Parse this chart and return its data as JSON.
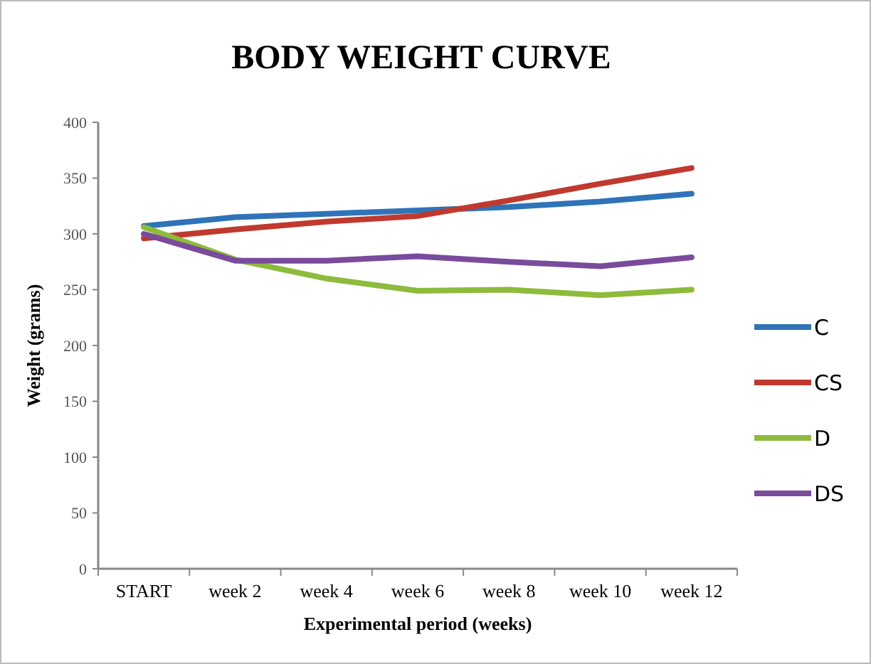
{
  "chart_data": {
    "type": "line",
    "title": "BODY WEIGHT  CURVE",
    "xlabel": "Experimental period (weeks)",
    "ylabel": "Weight (grams)",
    "categories": [
      "START",
      "week 2",
      "week 4",
      "week 6",
      "week 8",
      "week 10",
      "week 12"
    ],
    "series": [
      {
        "name": "C",
        "color": "#2f73b8",
        "values": [
          307,
          315,
          318,
          321,
          324,
          329,
          336
        ]
      },
      {
        "name": "CS",
        "color": "#c0392f",
        "values": [
          296,
          304,
          311,
          316,
          330,
          345,
          359
        ]
      },
      {
        "name": "D",
        "color": "#8dbb3c",
        "values": [
          306,
          277,
          260,
          249,
          250,
          245,
          250
        ]
      },
      {
        "name": "DS",
        "color": "#7a4b9c",
        "values": [
          300,
          276,
          276,
          280,
          275,
          271,
          279
        ]
      }
    ],
    "ylim": [
      0,
      400
    ],
    "yticks": [
      0,
      50,
      100,
      150,
      200,
      250,
      300,
      350,
      400
    ],
    "grid": false,
    "legend": "right",
    "marker": "none",
    "line_style": "solid"
  }
}
